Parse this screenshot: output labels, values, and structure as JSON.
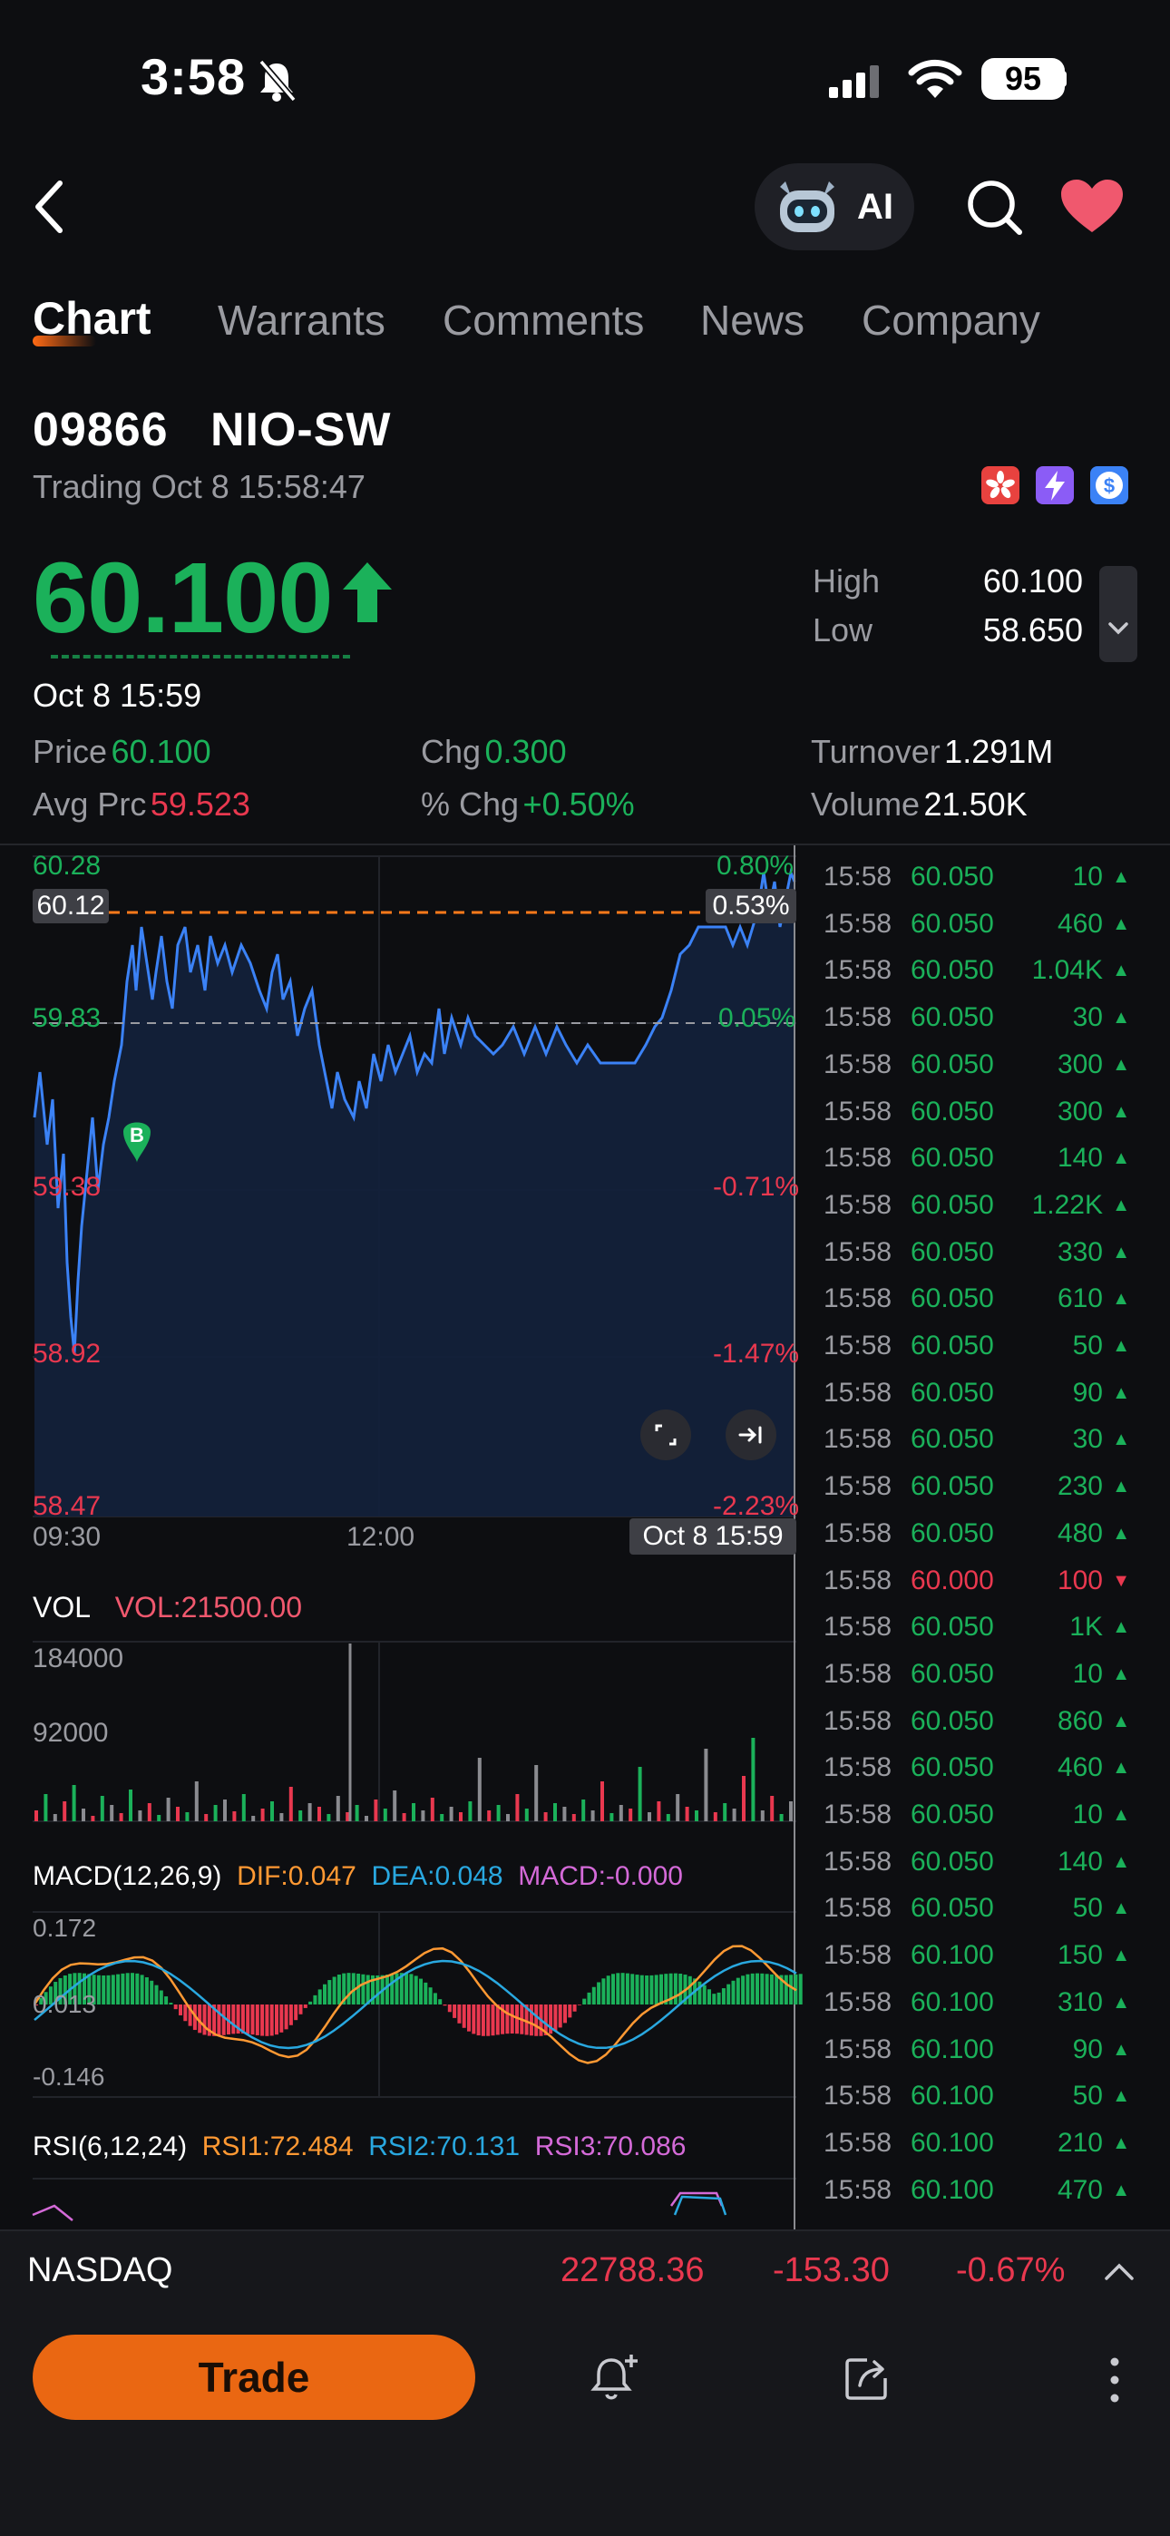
{
  "status_bar": {
    "time": "3:58",
    "battery": "95"
  },
  "nav": {
    "ai_label": "AI"
  },
  "tabs": [
    {
      "label": "Chart"
    },
    {
      "label": "Warrants"
    },
    {
      "label": "Comments"
    },
    {
      "label": "News"
    },
    {
      "label": "Company"
    }
  ],
  "stock": {
    "code": "09866",
    "name": "NIO-SW",
    "status": "Trading Oct 8 15:58:47",
    "price": "60.100",
    "high_label": "High",
    "high": "60.100",
    "low_label": "Low",
    "low": "58.650"
  },
  "crosshair": {
    "time": "Oct 8 15:59",
    "price_label": "Price",
    "price": "60.100",
    "chg_label": "Chg",
    "chg": "0.300",
    "turnover_label": "Turnover",
    "turnover": "1.291M",
    "avg_label": "Avg Prc",
    "avg": "59.523",
    "pchg_label": "% Chg",
    "pchg": "+0.50%",
    "volume_label": "Volume",
    "volume": "21.50K"
  },
  "chart": {
    "y_left": [
      "60.28",
      "59.83",
      "59.38",
      "58.92",
      "58.47"
    ],
    "y_right": [
      "0.80%",
      "0.05%",
      "-0.71%",
      "-1.47%",
      "-2.23%"
    ],
    "ref_price": "60.12",
    "ref_pct": "0.53%",
    "x_labels": [
      "09:30",
      "12:00"
    ],
    "cursor_time": "Oct 8 15:59",
    "marker": "B"
  },
  "volume": {
    "title": "VOL",
    "value": "VOL:21500.00",
    "y_labels": [
      "184000",
      "92000"
    ]
  },
  "macd": {
    "title": "MACD(12,26,9)",
    "dif": "DIF:0.047",
    "dea": "DEA:0.048",
    "macd": "MACD:-0.000",
    "y_labels": [
      "0.172",
      "0.013",
      "-0.146"
    ]
  },
  "rsi": {
    "title": "RSI(6,12,24)",
    "rsi1": "RSI1:72.484",
    "rsi2": "RSI2:70.131",
    "rsi3": "RSI3:70.086"
  },
  "trades": [
    {
      "time": "15:58",
      "price": "60.050",
      "vol": "10",
      "dir": "up"
    },
    {
      "time": "15:58",
      "price": "60.050",
      "vol": "460",
      "dir": "up"
    },
    {
      "time": "15:58",
      "price": "60.050",
      "vol": "1.04K",
      "dir": "up"
    },
    {
      "time": "15:58",
      "price": "60.050",
      "vol": "30",
      "dir": "up"
    },
    {
      "time": "15:58",
      "price": "60.050",
      "vol": "300",
      "dir": "up"
    },
    {
      "time": "15:58",
      "price": "60.050",
      "vol": "300",
      "dir": "up"
    },
    {
      "time": "15:58",
      "price": "60.050",
      "vol": "140",
      "dir": "up"
    },
    {
      "time": "15:58",
      "price": "60.050",
      "vol": "1.22K",
      "dir": "up"
    },
    {
      "time": "15:58",
      "price": "60.050",
      "vol": "330",
      "dir": "up"
    },
    {
      "time": "15:58",
      "price": "60.050",
      "vol": "610",
      "dir": "up"
    },
    {
      "time": "15:58",
      "price": "60.050",
      "vol": "50",
      "dir": "up"
    },
    {
      "time": "15:58",
      "price": "60.050",
      "vol": "90",
      "dir": "up"
    },
    {
      "time": "15:58",
      "price": "60.050",
      "vol": "30",
      "dir": "up"
    },
    {
      "time": "15:58",
      "price": "60.050",
      "vol": "230",
      "dir": "up"
    },
    {
      "time": "15:58",
      "price": "60.050",
      "vol": "480",
      "dir": "up"
    },
    {
      "time": "15:58",
      "price": "60.000",
      "vol": "100",
      "dir": "down"
    },
    {
      "time": "15:58",
      "price": "60.050",
      "vol": "1K",
      "dir": "up"
    },
    {
      "time": "15:58",
      "price": "60.050",
      "vol": "10",
      "dir": "up"
    },
    {
      "time": "15:58",
      "price": "60.050",
      "vol": "860",
      "dir": "up"
    },
    {
      "time": "15:58",
      "price": "60.050",
      "vol": "460",
      "dir": "up"
    },
    {
      "time": "15:58",
      "price": "60.050",
      "vol": "10",
      "dir": "up"
    },
    {
      "time": "15:58",
      "price": "60.050",
      "vol": "140",
      "dir": "up"
    },
    {
      "time": "15:58",
      "price": "60.050",
      "vol": "50",
      "dir": "up"
    },
    {
      "time": "15:58",
      "price": "60.100",
      "vol": "150",
      "dir": "up"
    },
    {
      "time": "15:58",
      "price": "60.100",
      "vol": "310",
      "dir": "up"
    },
    {
      "time": "15:58",
      "price": "60.100",
      "vol": "90",
      "dir": "up"
    },
    {
      "time": "15:58",
      "price": "60.100",
      "vol": "50",
      "dir": "up"
    },
    {
      "time": "15:58",
      "price": "60.100",
      "vol": "210",
      "dir": "up"
    },
    {
      "time": "15:58",
      "price": "60.100",
      "vol": "470",
      "dir": "up"
    }
  ],
  "index_bar": {
    "name": "NASDAQ",
    "value": "22788.36",
    "change": "-153.30",
    "pct": "-0.67%"
  },
  "bottom": {
    "trade_label": "Trade"
  },
  "colors": {
    "up": "#1bb15a",
    "down": "#e9384f",
    "accent": "#ea6712",
    "line": "#3b82f6"
  }
}
